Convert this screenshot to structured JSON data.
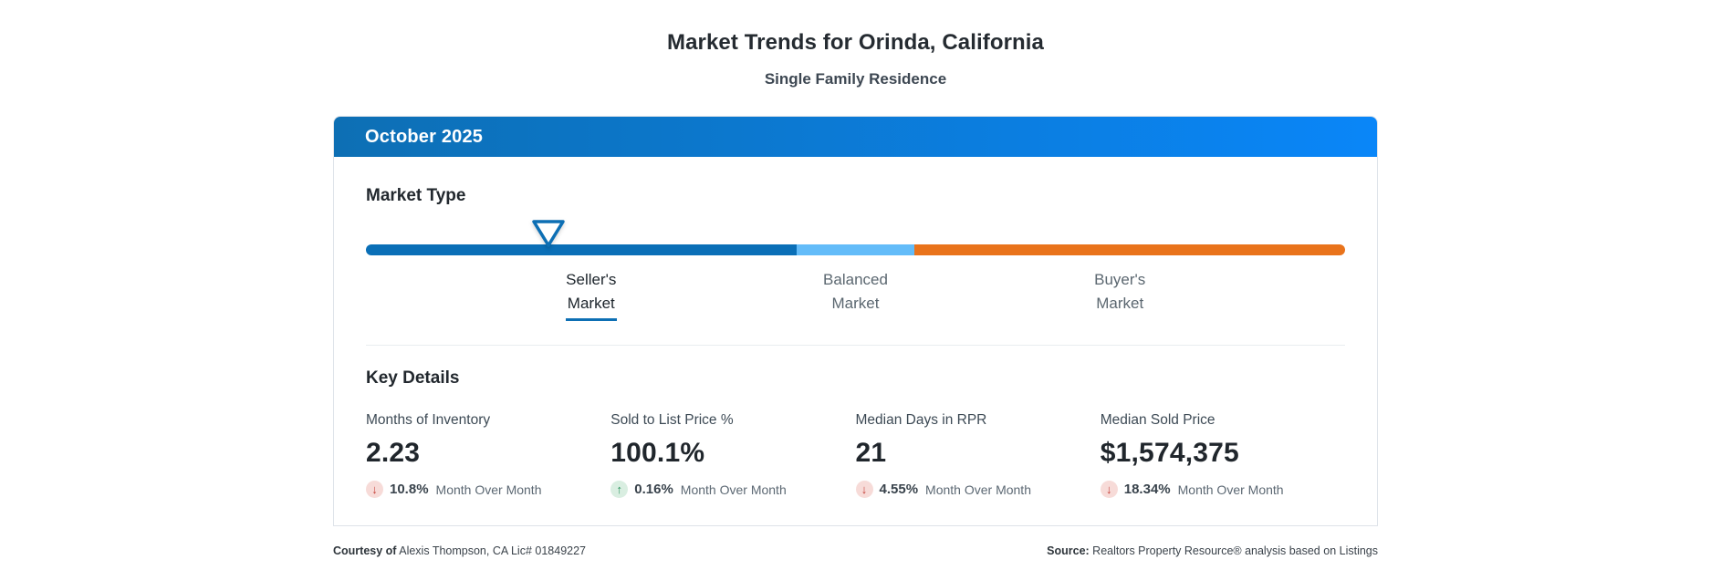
{
  "page": {
    "title": "Market Trends for Orinda, California",
    "subtitle": "Single Family Residence"
  },
  "card": {
    "header": {
      "month_label": "October 2025"
    },
    "market_type": {
      "section_title": "Market Type",
      "pointer_position_pct": 18.6,
      "segments": [
        {
          "name": "sellers-zone",
          "color": "#0a6fb7",
          "width_pct": 44
        },
        {
          "name": "balanced-zone",
          "color": "#63bcf9",
          "width_pct": 12
        },
        {
          "name": "buyers-zone",
          "color": "#e9731b",
          "width_pct": 44
        }
      ],
      "labels": [
        {
          "line1": "Seller's",
          "line2": "Market",
          "active": true
        },
        {
          "line1": "Balanced",
          "line2": "Market",
          "active": false
        },
        {
          "line1": "Buyer's",
          "line2": "Market",
          "active": false
        }
      ],
      "pointer_color": "#0d6fb4"
    },
    "key_details": {
      "section_title": "Key Details",
      "metrics": [
        {
          "label": "Months of Inventory",
          "value": "2.23",
          "arrow": "↓",
          "direction": "down",
          "change": "10.8%",
          "period": "Month Over Month"
        },
        {
          "label": "Sold to List Price %",
          "value": "100.1%",
          "arrow": "↑",
          "direction": "up",
          "change": "0.16%",
          "period": "Month Over Month"
        },
        {
          "label": "Median Days in RPR",
          "value": "21",
          "arrow": "↓",
          "direction": "down",
          "change": "4.55%",
          "period": "Month Over Month"
        },
        {
          "label": "Median Sold Price",
          "value": "$1,574,375",
          "arrow": "↓",
          "direction": "down",
          "change": "18.34%",
          "period": "Month Over Month"
        }
      ]
    }
  },
  "footer": {
    "courtesy_label": "Courtesy of",
    "courtesy_text": " Alexis Thompson, CA Lic# 01849227",
    "source_label": "Source:",
    "source_text": " Realtors Property Resource® analysis based on Listings"
  },
  "colors": {
    "header_gradient_start": "#0d6fb4",
    "header_gradient_end": "#0a86f8",
    "sellers_segment": "#0a6fb7",
    "balanced_segment": "#63bcf9",
    "buyers_segment": "#e9731b",
    "down_badge_bg": "#f7dbd8",
    "down_badge_fg": "#c5413a",
    "up_badge_bg": "#d9eee1",
    "up_badge_fg": "#27935c"
  },
  "chart_data": {
    "type": "gauge",
    "title": "Market Type",
    "categories": [
      "Seller's Market",
      "Balanced Market",
      "Buyer's Market"
    ],
    "segment_ranges_pct": [
      [
        0,
        44
      ],
      [
        44,
        56
      ],
      [
        56,
        100
      ]
    ],
    "pointer_position_pct": 18.6,
    "current_reading": "Seller's Market",
    "legend_position": "below-bar",
    "key_metrics": [
      {
        "label": "Months of Inventory",
        "value": 2.23,
        "mom_change_pct": -10.8
      },
      {
        "label": "Sold to List Price %",
        "value": 100.1,
        "mom_change_pct": 0.16
      },
      {
        "label": "Median Days in RPR",
        "value": 21,
        "mom_change_pct": -4.55
      },
      {
        "label": "Median Sold Price",
        "value": 1574375,
        "mom_change_pct": -18.34
      }
    ]
  }
}
